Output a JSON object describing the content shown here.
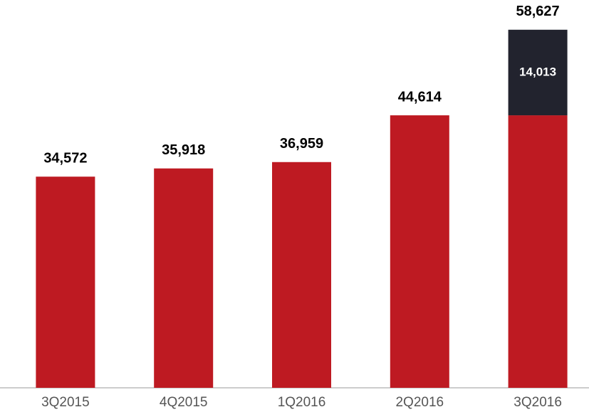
{
  "chart_data": {
    "type": "stacked_bar",
    "categories": [
      "3Q2015",
      "4Q2015",
      "1Q2016",
      "2Q2016",
      "3Q2016"
    ],
    "series": [
      {
        "color": "#be1a22",
        "values": [
          34572,
          35918,
          36959,
          44614,
          44614
        ]
      },
      {
        "color": "#22232e",
        "values": [
          null,
          null,
          null,
          null,
          14013
        ],
        "value_labels": [
          null,
          null,
          null,
          null,
          "14,013"
        ]
      }
    ],
    "totals": [
      34572,
      35918,
      36959,
      44614,
      58627
    ],
    "total_labels": [
      "34,572",
      "35,918",
      "36,959",
      "44,614",
      "58,627"
    ],
    "ylim": [
      0,
      60000
    ]
  }
}
